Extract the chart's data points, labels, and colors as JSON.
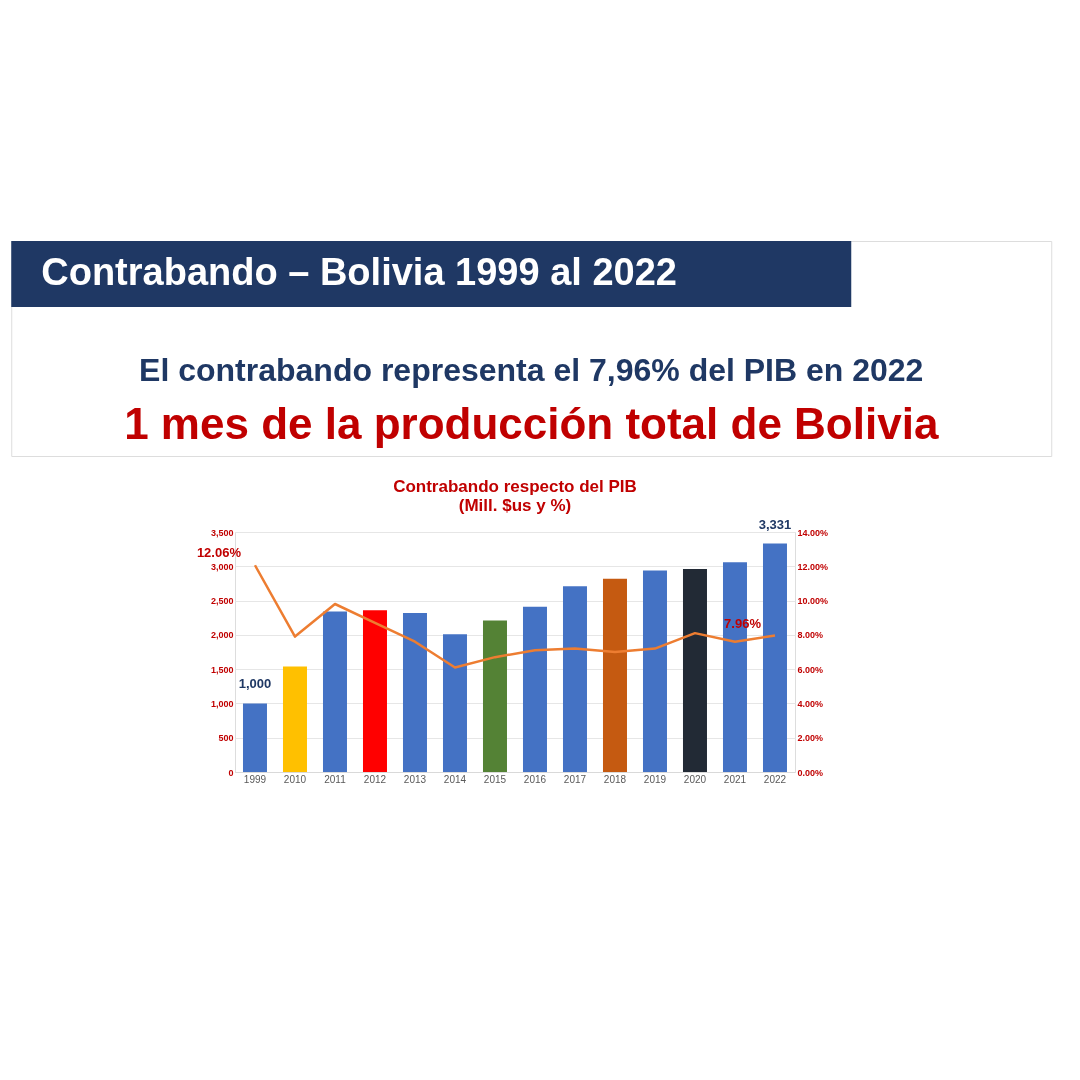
{
  "chart_data": {
    "type": "bar",
    "title": "Contrabando – Bolivia 1999 al 2022",
    "subtitle": "El contrabando representa el 7,96% del PIB en 2022",
    "annotations": [
      "1 mes de la producción total de Bolivia",
      "Contrabando respecto del PIB",
      "(Mill. $us y %)"
    ],
    "categories": [
      "1999",
      "2010",
      "2011",
      "2012",
      "2013",
      "2014",
      "2015",
      "2016",
      "2017",
      "2018",
      "2019",
      "2020",
      "2021",
      "2022"
    ],
    "series": [
      {
        "colors": [
          "#4472c4",
          "#ffc000",
          "#4472c4",
          "#ff0000",
          "#4472c4",
          "#4472c4",
          "#548235",
          "#4472c4",
          "#4472c4",
          "#c55a11",
          "#4472c4",
          "#222a35",
          "#4472c4",
          "#4472c4"
        ],
        "values": [
          1000,
          1540,
          2340,
          2360,
          2320,
          2010,
          2210,
          2410,
          2710,
          2820,
          2940,
          2960,
          3060,
          3331
        ],
        "value_labels": [
          "1,000",
          null,
          null,
          null,
          null,
          null,
          null,
          null,
          null,
          null,
          null,
          null,
          null,
          "3,331"
        ]
      },
      {
        "type": "line",
        "axis": "y2",
        "color": "#ed7d31",
        "values": [
          12.06,
          7.9,
          9.8,
          8.7,
          7.6,
          6.1,
          6.7,
          7.1,
          7.2,
          7.0,
          7.2,
          8.1,
          7.6,
          7.96
        ],
        "value_labels": [
          "12.06%",
          null,
          null,
          null,
          null,
          null,
          null,
          null,
          null,
          null,
          null,
          null,
          null,
          "7.96%"
        ]
      }
    ],
    "ylim": [
      0,
      3500
    ],
    "yticks": [
      {
        "value": 0,
        "label": "0"
      },
      {
        "value": 500,
        "label": "500"
      },
      {
        "value": 1000,
        "label": "1,000"
      },
      {
        "value": 1500,
        "label": "1,500"
      },
      {
        "value": 2000,
        "label": "2,000"
      },
      {
        "value": 2500,
        "label": "2,500"
      },
      {
        "value": 3000,
        "label": "3,000"
      },
      {
        "value": 3500,
        "label": "3,500"
      }
    ],
    "y2lim": [
      0,
      14
    ],
    "y2ticks": [
      {
        "value": 0,
        "label": "0.00%"
      },
      {
        "value": 2,
        "label": "2.00%"
      },
      {
        "value": 4,
        "label": "4.00%"
      },
      {
        "value": 6,
        "label": "6.00%"
      },
      {
        "value": 8,
        "label": "8.00%"
      },
      {
        "value": 10,
        "label": "10.00%"
      },
      {
        "value": 12,
        "label": "12.00%"
      },
      {
        "value": 14,
        "label": "14.00%"
      }
    ],
    "grid": "y"
  }
}
